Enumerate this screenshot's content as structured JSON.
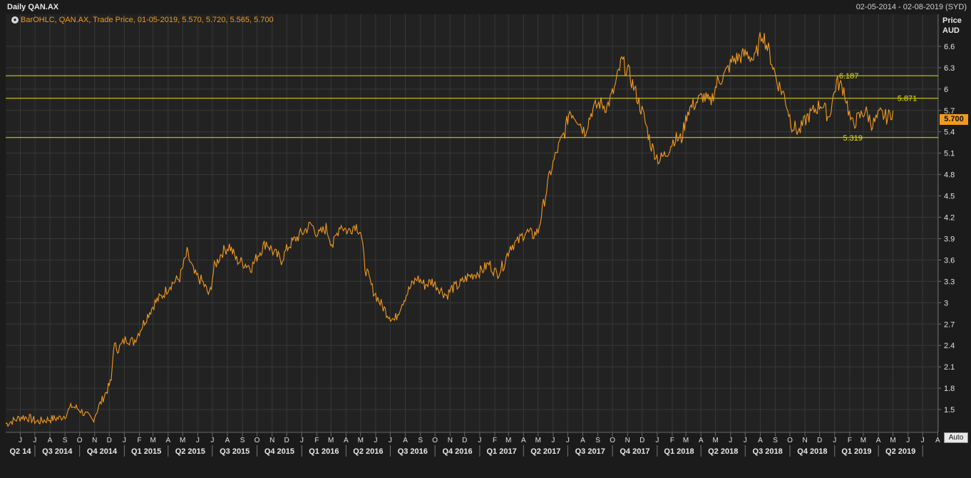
{
  "header": {
    "title": "Daily QAN.AX",
    "date_range": "02-05-2014 - 02-08-2019 (SYD)"
  },
  "legend": {
    "icon": "chart-settings-icon",
    "text": "BarOHLC, QAN.AX, Trade Price, 01-05-2019, 5.570, 5.720, 5.565, 5.700"
  },
  "axis": {
    "label_line1": "Price",
    "label_line2": "AUD"
  },
  "last_price": "5.700",
  "auto_button": "Auto",
  "colors": {
    "series": "#f29a1e",
    "hlines": "#e8e000",
    "grid": "#383838",
    "background": "#222222"
  },
  "chart_data": {
    "type": "line",
    "grid": true,
    "xlim": [
      "2014-05-02",
      "2019-08-02"
    ],
    "ylim": [
      1.18,
      7.05
    ],
    "yticks": [
      1.5,
      1.8,
      2.1,
      2.4,
      2.7,
      3,
      3.3,
      3.6,
      3.9,
      4.2,
      4.5,
      4.8,
      5.1,
      5.4,
      5.7,
      6,
      6.3,
      6.6
    ],
    "ytick_labels": [
      "1.5",
      "1.8",
      "2.1",
      "2.4",
      "2.7",
      "3",
      "3.3",
      "3.6",
      "3.9",
      "4.2",
      "4.5",
      "4.8",
      "5.1",
      "5.4",
      "5.7",
      "6",
      "6.3",
      "6.6"
    ],
    "month_labels": [
      {
        "date": "2014-06-01",
        "label": "J"
      },
      {
        "date": "2014-07-01",
        "label": "J"
      },
      {
        "date": "2014-08-01",
        "label": "A"
      },
      {
        "date": "2014-09-01",
        "label": "S"
      },
      {
        "date": "2014-10-01",
        "label": "O"
      },
      {
        "date": "2014-11-01",
        "label": "N"
      },
      {
        "date": "2014-12-01",
        "label": "D"
      },
      {
        "date": "2015-01-01",
        "label": "J"
      },
      {
        "date": "2015-02-01",
        "label": "F"
      },
      {
        "date": "2015-03-01",
        "label": "M"
      },
      {
        "date": "2015-04-01",
        "label": "A"
      },
      {
        "date": "2015-05-01",
        "label": "M"
      },
      {
        "date": "2015-06-01",
        "label": "J"
      },
      {
        "date": "2015-07-01",
        "label": "J"
      },
      {
        "date": "2015-08-01",
        "label": "A"
      },
      {
        "date": "2015-09-01",
        "label": "S"
      },
      {
        "date": "2015-10-01",
        "label": "O"
      },
      {
        "date": "2015-11-01",
        "label": "N"
      },
      {
        "date": "2015-12-01",
        "label": "D"
      },
      {
        "date": "2016-01-01",
        "label": "J"
      },
      {
        "date": "2016-02-01",
        "label": "F"
      },
      {
        "date": "2016-03-01",
        "label": "M"
      },
      {
        "date": "2016-04-01",
        "label": "A"
      },
      {
        "date": "2016-05-01",
        "label": "M"
      },
      {
        "date": "2016-06-01",
        "label": "J"
      },
      {
        "date": "2016-07-01",
        "label": "J"
      },
      {
        "date": "2016-08-01",
        "label": "A"
      },
      {
        "date": "2016-09-01",
        "label": "S"
      },
      {
        "date": "2016-10-01",
        "label": "O"
      },
      {
        "date": "2016-11-01",
        "label": "N"
      },
      {
        "date": "2016-12-01",
        "label": "D"
      },
      {
        "date": "2017-01-01",
        "label": "J"
      },
      {
        "date": "2017-02-01",
        "label": "F"
      },
      {
        "date": "2017-03-01",
        "label": "M"
      },
      {
        "date": "2017-04-01",
        "label": "A"
      },
      {
        "date": "2017-05-01",
        "label": "M"
      },
      {
        "date": "2017-06-01",
        "label": "J"
      },
      {
        "date": "2017-07-01",
        "label": "J"
      },
      {
        "date": "2017-08-01",
        "label": "A"
      },
      {
        "date": "2017-09-01",
        "label": "S"
      },
      {
        "date": "2017-10-01",
        "label": "O"
      },
      {
        "date": "2017-11-01",
        "label": "N"
      },
      {
        "date": "2017-12-01",
        "label": "D"
      },
      {
        "date": "2018-01-01",
        "label": "J"
      },
      {
        "date": "2018-02-01",
        "label": "F"
      },
      {
        "date": "2018-03-01",
        "label": "M"
      },
      {
        "date": "2018-04-01",
        "label": "A"
      },
      {
        "date": "2018-05-01",
        "label": "M"
      },
      {
        "date": "2018-06-01",
        "label": "J"
      },
      {
        "date": "2018-07-01",
        "label": "J"
      },
      {
        "date": "2018-08-01",
        "label": "A"
      },
      {
        "date": "2018-09-01",
        "label": "S"
      },
      {
        "date": "2018-10-01",
        "label": "O"
      },
      {
        "date": "2018-11-01",
        "label": "N"
      },
      {
        "date": "2018-12-01",
        "label": "D"
      },
      {
        "date": "2019-01-01",
        "label": "J"
      },
      {
        "date": "2019-02-01",
        "label": "F"
      },
      {
        "date": "2019-03-01",
        "label": "M"
      },
      {
        "date": "2019-04-01",
        "label": "A"
      },
      {
        "date": "2019-05-01",
        "label": "M"
      },
      {
        "date": "2019-06-01",
        "label": "J"
      },
      {
        "date": "2019-07-01",
        "label": "J"
      },
      {
        "date": "2019-08-01",
        "label": "A"
      }
    ],
    "quarter_labels": [
      {
        "start": "2014-04-01",
        "end": "2014-07-01",
        "label": "Q2 14"
      },
      {
        "start": "2014-07-01",
        "end": "2014-10-01",
        "label": "Q3 2014"
      },
      {
        "start": "2014-10-01",
        "end": "2015-01-01",
        "label": "Q4 2014"
      },
      {
        "start": "2015-01-01",
        "end": "2015-04-01",
        "label": "Q1 2015"
      },
      {
        "start": "2015-04-01",
        "end": "2015-07-01",
        "label": "Q2 2015"
      },
      {
        "start": "2015-07-01",
        "end": "2015-10-01",
        "label": "Q3 2015"
      },
      {
        "start": "2015-10-01",
        "end": "2016-01-01",
        "label": "Q4 2015"
      },
      {
        "start": "2016-01-01",
        "end": "2016-04-01",
        "label": "Q1 2016"
      },
      {
        "start": "2016-04-01",
        "end": "2016-07-01",
        "label": "Q2 2016"
      },
      {
        "start": "2016-07-01",
        "end": "2016-10-01",
        "label": "Q3 2016"
      },
      {
        "start": "2016-10-01",
        "end": "2017-01-01",
        "label": "Q4 2016"
      },
      {
        "start": "2017-01-01",
        "end": "2017-04-01",
        "label": "Q1 2017"
      },
      {
        "start": "2017-04-01",
        "end": "2017-07-01",
        "label": "Q2 2017"
      },
      {
        "start": "2017-07-01",
        "end": "2017-10-01",
        "label": "Q3 2017"
      },
      {
        "start": "2017-10-01",
        "end": "2018-01-01",
        "label": "Q4 2017"
      },
      {
        "start": "2018-01-01",
        "end": "2018-04-01",
        "label": "Q1 2018"
      },
      {
        "start": "2018-04-01",
        "end": "2018-07-01",
        "label": "Q2 2018"
      },
      {
        "start": "2018-07-01",
        "end": "2018-10-01",
        "label": "Q3 2018"
      },
      {
        "start": "2018-10-01",
        "end": "2019-01-01",
        "label": "Q4 2018"
      },
      {
        "start": "2019-01-01",
        "end": "2019-04-01",
        "label": "Q1 2019"
      },
      {
        "start": "2019-04-01",
        "end": "2019-07-01",
        "label": "Q2 2019"
      }
    ],
    "hlines": [
      {
        "value": 6.187,
        "label": "6.187",
        "label_date": "2019-01-10"
      },
      {
        "value": 5.871,
        "label": "5.871",
        "label_date": "2019-05-10"
      },
      {
        "value": 5.319,
        "label": "5.319",
        "label_date": "2019-01-18"
      }
    ],
    "series": [
      {
        "values_dates": [
          "2014-05-02",
          "2014-05-20",
          "2014-06-05",
          "2014-06-20",
          "2014-07-05",
          "2014-07-20",
          "2014-08-05",
          "2014-08-20",
          "2014-09-01",
          "2014-09-15",
          "2014-10-01",
          "2014-10-15",
          "2014-10-28",
          "2014-11-10",
          "2014-11-25",
          "2014-12-05",
          "2014-12-10",
          "2014-12-20",
          "2015-01-05",
          "2015-01-20",
          "2015-02-01",
          "2015-02-20",
          "2015-03-05",
          "2015-03-20",
          "2015-04-05",
          "2015-04-25",
          "2015-05-10",
          "2015-05-25",
          "2015-06-10",
          "2015-06-25",
          "2015-07-05",
          "2015-07-20",
          "2015-08-05",
          "2015-08-20",
          "2015-09-05",
          "2015-09-20",
          "2015-10-05",
          "2015-10-20",
          "2015-11-05",
          "2015-11-20",
          "2015-12-05",
          "2015-12-20",
          "2016-01-05",
          "2016-01-20",
          "2016-02-05",
          "2016-02-20",
          "2016-03-05",
          "2016-03-20",
          "2016-04-05",
          "2016-04-20",
          "2016-05-01",
          "2016-05-10",
          "2016-05-25",
          "2016-06-10",
          "2016-06-25",
          "2016-07-10",
          "2016-07-25",
          "2016-08-10",
          "2016-08-25",
          "2016-09-10",
          "2016-09-25",
          "2016-10-10",
          "2016-10-25",
          "2016-11-05",
          "2016-11-20",
          "2016-12-05",
          "2016-12-20",
          "2017-01-05",
          "2017-01-20",
          "2017-02-05",
          "2017-02-20",
          "2017-03-05",
          "2017-03-20",
          "2017-04-05",
          "2017-04-20",
          "2017-05-01",
          "2017-05-10",
          "2017-05-25",
          "2017-06-10",
          "2017-06-25",
          "2017-07-05",
          "2017-07-20",
          "2017-08-05",
          "2017-08-20",
          "2017-09-05",
          "2017-09-20",
          "2017-10-05",
          "2017-10-20",
          "2017-11-05",
          "2017-11-20",
          "2017-12-05",
          "2017-12-20",
          "2018-01-05",
          "2018-01-20",
          "2018-02-05",
          "2018-02-20",
          "2018-03-05",
          "2018-03-20",
          "2018-04-05",
          "2018-04-20",
          "2018-05-05",
          "2018-05-20",
          "2018-06-05",
          "2018-06-20",
          "2018-07-05",
          "2018-07-20",
          "2018-08-05",
          "2018-08-20",
          "2018-09-05",
          "2018-09-20",
          "2018-10-05",
          "2018-10-20",
          "2018-11-05",
          "2018-11-20",
          "2018-12-05",
          "2018-12-20",
          "2019-01-05",
          "2019-01-20",
          "2019-02-05",
          "2019-02-20",
          "2019-03-05",
          "2019-03-20",
          "2019-04-05",
          "2019-04-20",
          "2019-05-01"
        ],
        "values": [
          1.3,
          1.35,
          1.4,
          1.38,
          1.33,
          1.35,
          1.37,
          1.38,
          1.42,
          1.55,
          1.5,
          1.42,
          1.35,
          1.55,
          1.75,
          1.9,
          2.4,
          2.35,
          2.5,
          2.45,
          2.6,
          2.85,
          3.0,
          3.1,
          3.25,
          3.35,
          3.7,
          3.4,
          3.3,
          3.1,
          3.5,
          3.7,
          3.8,
          3.6,
          3.55,
          3.5,
          3.7,
          3.85,
          3.7,
          3.6,
          3.8,
          3.9,
          4.0,
          4.1,
          3.95,
          4.05,
          3.8,
          4.1,
          4.0,
          4.1,
          4.0,
          3.5,
          3.2,
          3.0,
          2.85,
          2.75,
          3.0,
          3.2,
          3.35,
          3.25,
          3.3,
          3.2,
          3.1,
          3.2,
          3.25,
          3.35,
          3.4,
          3.45,
          3.55,
          3.4,
          3.55,
          3.8,
          3.85,
          4.0,
          3.95,
          4.0,
          4.3,
          4.8,
          5.15,
          5.4,
          5.7,
          5.6,
          5.4,
          5.7,
          5.8,
          5.75,
          6.0,
          6.4,
          6.2,
          5.9,
          5.6,
          5.2,
          5.0,
          5.1,
          5.3,
          5.3,
          5.7,
          5.8,
          5.9,
          5.8,
          6.1,
          6.2,
          6.4,
          6.45,
          6.5,
          6.4,
          6.8,
          6.5,
          6.1,
          5.9,
          5.5,
          5.4,
          5.6,
          5.7,
          5.8,
          5.6,
          6.1,
          6.0,
          5.5,
          5.6,
          5.7,
          5.5,
          5.65,
          5.6,
          5.7
        ]
      }
    ]
  }
}
